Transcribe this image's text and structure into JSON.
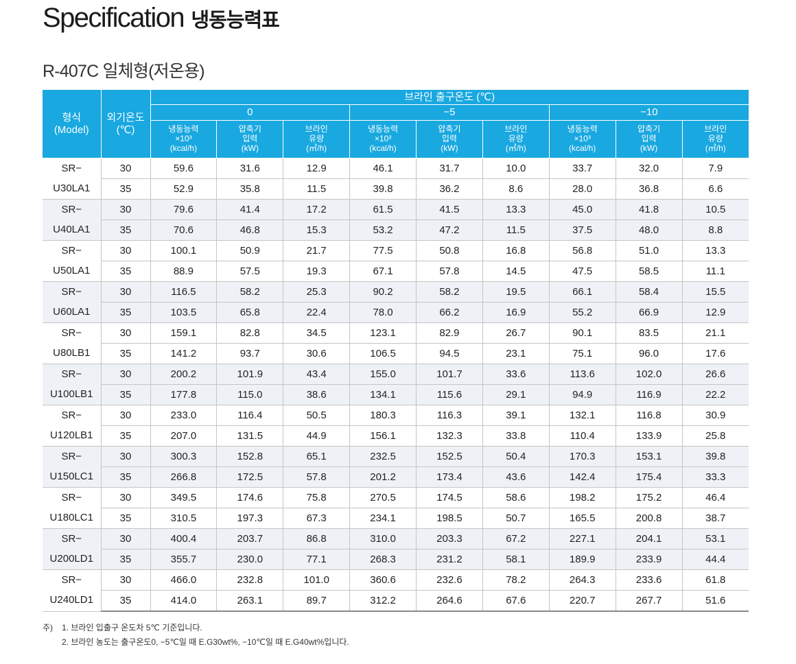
{
  "title": {
    "en": "Specification",
    "ko": "냉동능력표"
  },
  "subtitle": "R-407C 일체형(저온용)",
  "table": {
    "model_header": [
      "형식",
      "(Model)"
    ],
    "ambient_header": [
      "외기온도",
      "(℃)"
    ],
    "brine_header": "브라인 출구온도 (℃)",
    "temps": [
      "0",
      "−5",
      "−10"
    ],
    "sub_headers": [
      [
        "냉동능력",
        "×10³",
        "(kcal/h)"
      ],
      [
        "압축기",
        "입력",
        "(kW)"
      ],
      [
        "브라인",
        "유량",
        "(㎥/h)"
      ]
    ],
    "rows": [
      {
        "model": [
          "SR−",
          "U30LA1"
        ],
        "data": [
          [
            "30",
            "59.6",
            "31.6",
            "12.9",
            "46.1",
            "31.7",
            "10.0",
            "33.7",
            "32.0",
            "7.9"
          ],
          [
            "35",
            "52.9",
            "35.8",
            "11.5",
            "39.8",
            "36.2",
            "8.6",
            "28.0",
            "36.8",
            "6.6"
          ]
        ]
      },
      {
        "model": [
          "SR−",
          "U40LA1"
        ],
        "data": [
          [
            "30",
            "79.6",
            "41.4",
            "17.2",
            "61.5",
            "41.5",
            "13.3",
            "45.0",
            "41.8",
            "10.5"
          ],
          [
            "35",
            "70.6",
            "46.8",
            "15.3",
            "53.2",
            "47.2",
            "11.5",
            "37.5",
            "48.0",
            "8.8"
          ]
        ]
      },
      {
        "model": [
          "SR−",
          "U50LA1"
        ],
        "data": [
          [
            "30",
            "100.1",
            "50.9",
            "21.7",
            "77.5",
            "50.8",
            "16.8",
            "56.8",
            "51.0",
            "13.3"
          ],
          [
            "35",
            "88.9",
            "57.5",
            "19.3",
            "67.1",
            "57.8",
            "14.5",
            "47.5",
            "58.5",
            "11.1"
          ]
        ]
      },
      {
        "model": [
          "SR−",
          "U60LA1"
        ],
        "data": [
          [
            "30",
            "116.5",
            "58.2",
            "25.3",
            "90.2",
            "58.2",
            "19.5",
            "66.1",
            "58.4",
            "15.5"
          ],
          [
            "35",
            "103.5",
            "65.8",
            "22.4",
            "78.0",
            "66.2",
            "16.9",
            "55.2",
            "66.9",
            "12.9"
          ]
        ]
      },
      {
        "model": [
          "SR−",
          "U80LB1"
        ],
        "data": [
          [
            "30",
            "159.1",
            "82.8",
            "34.5",
            "123.1",
            "82.9",
            "26.7",
            "90.1",
            "83.5",
            "21.1"
          ],
          [
            "35",
            "141.2",
            "93.7",
            "30.6",
            "106.5",
            "94.5",
            "23.1",
            "75.1",
            "96.0",
            "17.6"
          ]
        ]
      },
      {
        "model": [
          "SR−",
          "U100LB1"
        ],
        "data": [
          [
            "30",
            "200.2",
            "101.9",
            "43.4",
            "155.0",
            "101.7",
            "33.6",
            "113.6",
            "102.0",
            "26.6"
          ],
          [
            "35",
            "177.8",
            "115.0",
            "38.6",
            "134.1",
            "115.6",
            "29.1",
            "94.9",
            "116.9",
            "22.2"
          ]
        ]
      },
      {
        "model": [
          "SR−",
          "U120LB1"
        ],
        "data": [
          [
            "30",
            "233.0",
            "116.4",
            "50.5",
            "180.3",
            "116.3",
            "39.1",
            "132.1",
            "116.8",
            "30.9"
          ],
          [
            "35",
            "207.0",
            "131.5",
            "44.9",
            "156.1",
            "132.3",
            "33.8",
            "110.4",
            "133.9",
            "25.8"
          ]
        ]
      },
      {
        "model": [
          "SR−",
          "U150LC1"
        ],
        "data": [
          [
            "30",
            "300.3",
            "152.8",
            "65.1",
            "232.5",
            "152.5",
            "50.4",
            "170.3",
            "153.1",
            "39.8"
          ],
          [
            "35",
            "266.8",
            "172.5",
            "57.8",
            "201.2",
            "173.4",
            "43.6",
            "142.4",
            "175.4",
            "33.3"
          ]
        ]
      },
      {
        "model": [
          "SR−",
          "U180LC1"
        ],
        "data": [
          [
            "30",
            "349.5",
            "174.6",
            "75.8",
            "270.5",
            "174.5",
            "58.6",
            "198.2",
            "175.2",
            "46.4"
          ],
          [
            "35",
            "310.5",
            "197.3",
            "67.3",
            "234.1",
            "198.5",
            "50.7",
            "165.5",
            "200.8",
            "38.7"
          ]
        ]
      },
      {
        "model": [
          "SR−",
          "U200LD1"
        ],
        "data": [
          [
            "30",
            "400.4",
            "203.7",
            "86.8",
            "310.0",
            "203.3",
            "67.2",
            "227.1",
            "204.1",
            "53.1"
          ],
          [
            "35",
            "355.7",
            "230.0",
            "77.1",
            "268.3",
            "231.2",
            "58.1",
            "189.9",
            "233.9",
            "44.4"
          ]
        ]
      },
      {
        "model": [
          "SR−",
          "U240LD1"
        ],
        "data": [
          [
            "30",
            "466.0",
            "232.8",
            "101.0",
            "360.6",
            "232.6",
            "78.2",
            "264.3",
            "233.6",
            "61.8"
          ],
          [
            "35",
            "414.0",
            "263.1",
            "89.7",
            "312.2",
            "264.6",
            "67.6",
            "220.7",
            "267.7",
            "51.6"
          ]
        ]
      }
    ]
  },
  "notes": {
    "mark": "주)",
    "items": [
      "1. 브라인 입출구 온도차 5℃ 기준입니다.",
      "2. 브라인 농도는 출구온도0, −5℃일 때 E.G30wt%, −10℃일 때 E.G40wt%입니다."
    ]
  },
  "colors": {
    "header_bg": "#19a8e0",
    "alt_row_bg": "#eef2f6",
    "grid": "#c4c4c4"
  }
}
